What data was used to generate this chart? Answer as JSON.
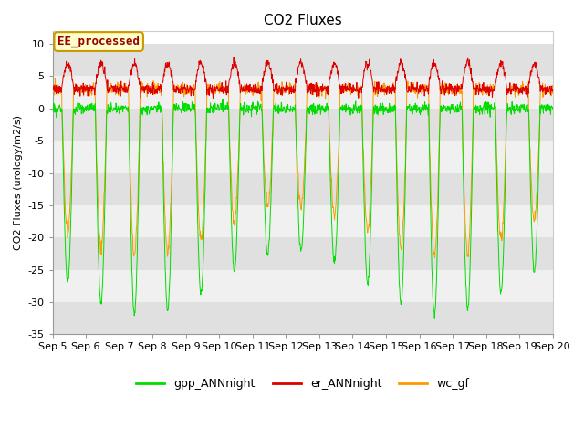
{
  "title": "CO2 Fluxes",
  "ylabel": "CO2 Fluxes (urology/m2/s)",
  "ylim": [
    -35,
    12
  ],
  "yticks": [
    -35,
    -30,
    -25,
    -20,
    -15,
    -10,
    -5,
    0,
    5,
    10
  ],
  "n_days": 15,
  "day_start": 5,
  "points_per_day": 96,
  "legend_labels": [
    "gpp_ANNnight",
    "er_ANNnight",
    "wc_gf"
  ],
  "legend_colors": [
    "#00dd00",
    "#dd0000",
    "#ff9900"
  ],
  "line_colors": {
    "gpp": "#00dd00",
    "er": "#dd0000",
    "wc": "#ff9900"
  },
  "background_color": "#ffffff",
  "plot_bg": "#f0f0f0",
  "band_colors": [
    "#e8e8e8",
    "#d8d8d8"
  ],
  "grid_color": "#ffffff",
  "annotation_text": "EE_processed",
  "annotation_color": "#990000",
  "annotation_bg": "#ffffcc",
  "annotation_edge": "#cc9900",
  "title_fontsize": 11,
  "axis_fontsize": 8,
  "tick_fontsize": 8
}
